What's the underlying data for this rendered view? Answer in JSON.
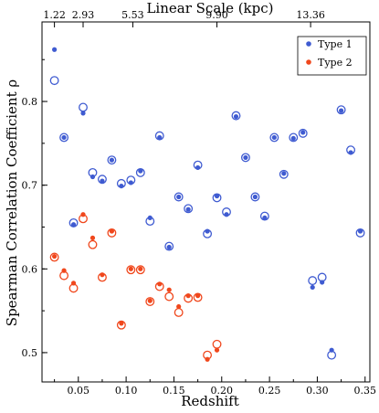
{
  "chart_data": {
    "type": "scatter",
    "xlabel": "Redshift",
    "ylabel": "Spearman Correlation Coefficient ρ",
    "top_xlabel": "Linear Scale (kpc)",
    "xlim": [
      0.012,
      0.355
    ],
    "ylim": [
      0.465,
      0.895
    ],
    "x_ticks": [
      0.05,
      0.1,
      0.15,
      0.2,
      0.25,
      0.3,
      0.35
    ],
    "x_tick_labels": [
      "0.05",
      "0.10",
      "0.15",
      "0.20",
      "0.25",
      "0.30",
      "0.35"
    ],
    "y_ticks": [
      0.5,
      0.6,
      0.7,
      0.8
    ],
    "y_tick_labels": [
      "0.5",
      "0.6",
      "0.7",
      "0.8"
    ],
    "top_ticks": [
      {
        "x": 0.025,
        "label": "1.22"
      },
      {
        "x": 0.055,
        "label": "2.93"
      },
      {
        "x": 0.107,
        "label": "5.53"
      },
      {
        "x": 0.195,
        "label": "9.90"
      },
      {
        "x": 0.293,
        "label": "13.36"
      }
    ],
    "legend_position": "top-right",
    "series": [
      {
        "name": "Type 1",
        "color": "#3f5bd1",
        "filled": [
          [
            0.025,
            0.862
          ],
          [
            0.035,
            0.757
          ],
          [
            0.045,
            0.653
          ],
          [
            0.055,
            0.786
          ],
          [
            0.065,
            0.71
          ],
          [
            0.075,
            0.705
          ],
          [
            0.085,
            0.73
          ],
          [
            0.095,
            0.699
          ],
          [
            0.105,
            0.703
          ],
          [
            0.115,
            0.717
          ],
          [
            0.125,
            0.661
          ],
          [
            0.135,
            0.757
          ],
          [
            0.145,
            0.626
          ],
          [
            0.155,
            0.686
          ],
          [
            0.165,
            0.671
          ],
          [
            0.175,
            0.721
          ],
          [
            0.185,
            0.645
          ],
          [
            0.195,
            0.687
          ],
          [
            0.205,
            0.665
          ],
          [
            0.215,
            0.782
          ],
          [
            0.225,
            0.733
          ],
          [
            0.235,
            0.686
          ],
          [
            0.245,
            0.661
          ],
          [
            0.255,
            0.757
          ],
          [
            0.265,
            0.714
          ],
          [
            0.275,
            0.756
          ],
          [
            0.285,
            0.763
          ],
          [
            0.295,
            0.578
          ],
          [
            0.305,
            0.584
          ],
          [
            0.315,
            0.503
          ],
          [
            0.325,
            0.789
          ],
          [
            0.335,
            0.739
          ],
          [
            0.345,
            0.645
          ]
        ],
        "open": [
          [
            0.025,
            0.825
          ],
          [
            0.035,
            0.757
          ],
          [
            0.045,
            0.655
          ],
          [
            0.055,
            0.793
          ],
          [
            0.065,
            0.715
          ],
          [
            0.075,
            0.707
          ],
          [
            0.085,
            0.73
          ],
          [
            0.095,
            0.702
          ],
          [
            0.105,
            0.706
          ],
          [
            0.115,
            0.715
          ],
          [
            0.125,
            0.657
          ],
          [
            0.135,
            0.759
          ],
          [
            0.145,
            0.627
          ],
          [
            0.155,
            0.686
          ],
          [
            0.165,
            0.672
          ],
          [
            0.175,
            0.724
          ],
          [
            0.185,
            0.642
          ],
          [
            0.195,
            0.685
          ],
          [
            0.205,
            0.668
          ],
          [
            0.215,
            0.783
          ],
          [
            0.225,
            0.733
          ],
          [
            0.235,
            0.686
          ],
          [
            0.245,
            0.663
          ],
          [
            0.255,
            0.757
          ],
          [
            0.265,
            0.713
          ],
          [
            0.275,
            0.757
          ],
          [
            0.285,
            0.762
          ],
          [
            0.295,
            0.586
          ],
          [
            0.305,
            0.59
          ],
          [
            0.315,
            0.497
          ],
          [
            0.325,
            0.79
          ],
          [
            0.335,
            0.742
          ],
          [
            0.345,
            0.643
          ]
        ]
      },
      {
        "name": "Type 2",
        "color": "#f0471c",
        "filled": [
          [
            0.025,
            0.615
          ],
          [
            0.035,
            0.598
          ],
          [
            0.045,
            0.583
          ],
          [
            0.055,
            0.665
          ],
          [
            0.065,
            0.637
          ],
          [
            0.075,
            0.593
          ],
          [
            0.085,
            0.645
          ],
          [
            0.095,
            0.535
          ],
          [
            0.105,
            0.6
          ],
          [
            0.115,
            0.6
          ],
          [
            0.125,
            0.562
          ],
          [
            0.135,
            0.582
          ],
          [
            0.145,
            0.575
          ],
          [
            0.155,
            0.555
          ],
          [
            0.165,
            0.568
          ],
          [
            0.175,
            0.568
          ],
          [
            0.185,
            0.492
          ],
          [
            0.195,
            0.503
          ]
        ],
        "open": [
          [
            0.025,
            0.614
          ],
          [
            0.035,
            0.592
          ],
          [
            0.045,
            0.577
          ],
          [
            0.055,
            0.66
          ],
          [
            0.065,
            0.629
          ],
          [
            0.075,
            0.59
          ],
          [
            0.085,
            0.643
          ],
          [
            0.095,
            0.533
          ],
          [
            0.105,
            0.599
          ],
          [
            0.115,
            0.599
          ],
          [
            0.125,
            0.561
          ],
          [
            0.135,
            0.579
          ],
          [
            0.145,
            0.567
          ],
          [
            0.155,
            0.548
          ],
          [
            0.165,
            0.565
          ],
          [
            0.175,
            0.566
          ],
          [
            0.185,
            0.497
          ],
          [
            0.195,
            0.51
          ]
        ]
      }
    ]
  }
}
